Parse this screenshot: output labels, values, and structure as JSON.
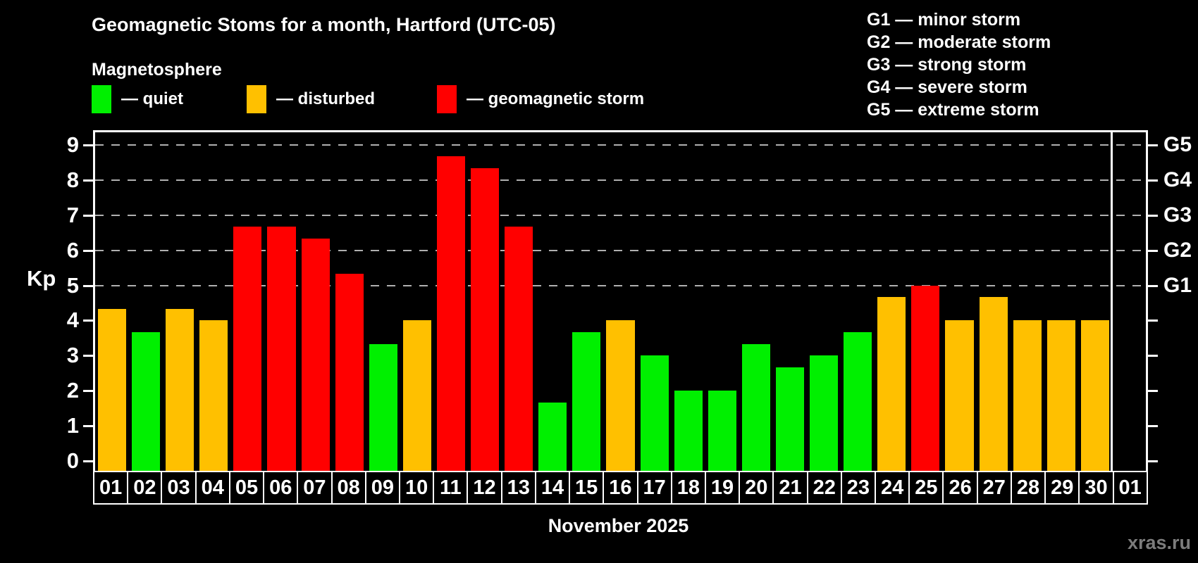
{
  "title": "Geomagnetic Stoms for a month, Hartford (UTC-05)",
  "subtitle": "Magnetosphere",
  "legend": {
    "items": [
      {
        "key": "quiet",
        "label": "— quiet",
        "color": "#00f000"
      },
      {
        "key": "disturbed",
        "label": "— disturbed",
        "color": "#ffc000"
      },
      {
        "key": "storm",
        "label": "— geomagnetic storm",
        "color": "#ff0000"
      }
    ]
  },
  "storm_scale_legend": [
    "G1 — minor storm",
    "G2 — moderate storm",
    "G3 — strong storm",
    "G4 — severe storm",
    "G5 — extreme storm"
  ],
  "watermark": "xras.ru",
  "chart_data": {
    "type": "bar",
    "title": "Geomagnetic Stoms for a month, Hartford (UTC-05)",
    "xlabel": "November 2025",
    "ylabel": "Kp",
    "ylim": [
      0,
      9
    ],
    "y_ticks": [
      0,
      1,
      2,
      3,
      4,
      5,
      6,
      7,
      8,
      9
    ],
    "gridlines_at": [
      5,
      6,
      7,
      8,
      9
    ],
    "grid_style": "dashed",
    "legend_position": "top-left",
    "right_axis_labels": {
      "5": "G1",
      "6": "G2",
      "7": "G3",
      "8": "G4",
      "9": "G5"
    },
    "categories": [
      "01",
      "02",
      "03",
      "04",
      "05",
      "06",
      "07",
      "08",
      "09",
      "10",
      "11",
      "12",
      "13",
      "14",
      "15",
      "16",
      "17",
      "18",
      "19",
      "20",
      "21",
      "22",
      "23",
      "24",
      "25",
      "26",
      "27",
      "28",
      "29",
      "30",
      "01"
    ],
    "series": [
      {
        "name": "Kp index",
        "values": [
          4.33,
          3.67,
          4.33,
          4.0,
          6.67,
          6.67,
          6.33,
          5.33,
          3.33,
          4.0,
          8.67,
          8.33,
          6.67,
          1.67,
          3.67,
          4.0,
          3.0,
          2.0,
          2.0,
          3.33,
          2.67,
          3.0,
          3.67,
          4.67,
          5.0,
          4.0,
          4.67,
          4.0,
          4.0,
          4.0,
          null
        ]
      }
    ],
    "statuses": [
      "disturbed",
      "quiet",
      "disturbed",
      "disturbed",
      "storm",
      "storm",
      "storm",
      "storm",
      "quiet",
      "disturbed",
      "storm",
      "storm",
      "storm",
      "quiet",
      "quiet",
      "disturbed",
      "quiet",
      "quiet",
      "quiet",
      "quiet",
      "quiet",
      "quiet",
      "quiet",
      "disturbed",
      "storm",
      "disturbed",
      "disturbed",
      "disturbed",
      "disturbed",
      "disturbed",
      null
    ],
    "status_colors": {
      "quiet": "#00f000",
      "disturbed": "#ffc000",
      "storm": "#ff0000"
    },
    "month_separator_after_index": 29,
    "background_color": "#000000",
    "text_color": "#ffffff"
  }
}
